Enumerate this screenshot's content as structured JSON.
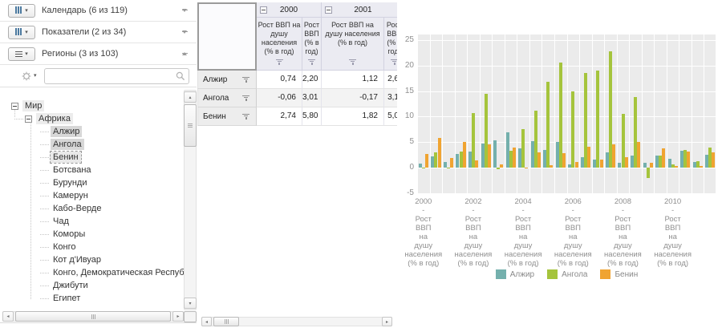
{
  "filters": {
    "sections": [
      {
        "id": "calendar",
        "label": "Календарь (6 из 119)",
        "collapsed": true
      },
      {
        "id": "indicators",
        "label": "Показатели (2 из 34)",
        "collapsed": true
      },
      {
        "id": "regions",
        "label": "Регионы (3 из 103)",
        "collapsed": false
      }
    ],
    "search": {
      "value": "",
      "placeholder": ""
    }
  },
  "tree": {
    "items": [
      {
        "label": "Мир",
        "level": 0,
        "expander": true,
        "state": "highlight"
      },
      {
        "label": "Африка",
        "level": 1,
        "expander": true,
        "state": "highlight"
      },
      {
        "label": "Алжир",
        "level": 2,
        "expander": false,
        "state": "selected"
      },
      {
        "label": "Ангола",
        "level": 2,
        "expander": false,
        "state": "selected"
      },
      {
        "label": "Бенин",
        "level": 2,
        "expander": false,
        "state": "focused"
      },
      {
        "label": "Ботсвана",
        "level": 2,
        "expander": false,
        "state": "none"
      },
      {
        "label": "Бурунди",
        "level": 2,
        "expander": false,
        "state": "none"
      },
      {
        "label": "Камерун",
        "level": 2,
        "expander": false,
        "state": "none"
      },
      {
        "label": "Кабо-Верде",
        "level": 2,
        "expander": false,
        "state": "none"
      },
      {
        "label": "Чад",
        "level": 2,
        "expander": false,
        "state": "none"
      },
      {
        "label": "Коморы",
        "level": 2,
        "expander": false,
        "state": "none"
      },
      {
        "label": "Конго",
        "level": 2,
        "expander": false,
        "state": "none"
      },
      {
        "label": "Кот д'Ивуар",
        "level": 2,
        "expander": false,
        "state": "none"
      },
      {
        "label": "Конго, Демократическая Республика",
        "level": 2,
        "expander": false,
        "state": "none"
      },
      {
        "label": "Джибути",
        "level": 2,
        "expander": false,
        "state": "none"
      },
      {
        "label": "Египет",
        "level": 2,
        "expander": false,
        "state": "none"
      }
    ]
  },
  "table": {
    "year_groups": [
      {
        "year": "2000"
      },
      {
        "year": "2001"
      }
    ],
    "measures": [
      "Рост ВВП на душу населения (% в год)",
      "Рост ВВП (% в год)"
    ],
    "rows": [
      {
        "region": "Алжир",
        "values": [
          "0,74",
          "2,20",
          "1,12",
          "2,6"
        ]
      },
      {
        "region": "Ангола",
        "values": [
          "-0,06",
          "3,01",
          "-0,17",
          "3,1"
        ]
      },
      {
        "region": "Бенин",
        "values": [
          "2,74",
          "5,80",
          "1,82",
          "5,0"
        ]
      }
    ]
  },
  "chart_data": {
    "type": "bar",
    "title": "",
    "ylim": [
      -5,
      25
    ],
    "yticks": [
      25,
      20,
      15,
      10,
      5,
      0,
      -5
    ],
    "grid": true,
    "plot_bg": "#ebebeb",
    "legend_position": "bottom",
    "categories": [
      "2000 - Рост ВВП на душу населения (% в год)",
      "2000 - Рост ВВП (% в год)",
      "2001 - Рост ВВП на душу населения (% в год)",
      "2001 - Рост ВВП (% в год)",
      "2002 - Рост ВВП на душу населения (% в год)",
      "2002 - Рост ВВП (% в год)",
      "2003 - Рост ВВП на душу населения (% в год)",
      "2003 - Рост ВВП (% в год)",
      "2004 - Рост ВВП на душу населения (% в год)",
      "2004 - Рост ВВП (% в год)",
      "2005 - Рост ВВП на душу населения (% в год)",
      "2005 - Рост ВВП (% в год)",
      "2006 - Рост ВВП на душу населения (% в год)",
      "2006 - Рост ВВП (% в год)",
      "2007 - Рост ВВП на душу населения (% в год)",
      "2007 - Рост ВВП (% в год)",
      "2008 - Рост ВВП на душу населения (% в год)",
      "2008 - Рост ВВП (% в год)",
      "2009 - Рост ВВП на душу населения (% в год)",
      "2009 - Рост ВВП (% в год)",
      "2010 - Рост ВВП на душу населения (% в год)",
      "2010 - Рост ВВП (% в год)",
      "2011 - Рост ВВП на душу населения (% в год)",
      "2011 - Рост ВВП (% в год)"
    ],
    "series": [
      {
        "name": "Алжир",
        "color": "#74b0ad",
        "values": [
          0.74,
          2.2,
          1.12,
          2.6,
          3.1,
          4.7,
          5.4,
          6.9,
          3.7,
          5.2,
          3.5,
          5.1,
          0.6,
          2.0,
          1.5,
          3.0,
          0.9,
          2.4,
          0.9,
          2.4,
          1.8,
          3.3,
          1.1,
          2.5
        ]
      },
      {
        "name": "Ангола",
        "color": "#a5c43c",
        "values": [
          -0.06,
          3.01,
          -0.17,
          3.1,
          10.7,
          14.5,
          -0.3,
          3.3,
          7.5,
          11.2,
          16.8,
          20.6,
          14.9,
          18.6,
          19.1,
          22.8,
          10.5,
          13.9,
          -2.1,
          2.4,
          0.6,
          3.4,
          1.2,
          3.9
        ]
      },
      {
        "name": "Бенин",
        "color": "#f0a431",
        "values": [
          2.74,
          5.8,
          1.82,
          5.0,
          1.4,
          4.5,
          0.7,
          3.9,
          -0.2,
          3.0,
          0.5,
          2.9,
          1.1,
          4.1,
          1.6,
          4.6,
          2.1,
          5.1,
          0.9,
          3.7,
          0.3,
          3.1,
          0.3,
          3.0
        ]
      }
    ],
    "x_tick_group_indices": [
      0,
      4,
      8,
      12,
      16,
      20
    ],
    "x_tick_years": [
      "2000",
      "2002",
      "2004",
      "2006",
      "2008",
      "2010"
    ],
    "x_tick_lines": [
      "-",
      "Рост",
      "ВВП",
      "на",
      "душу",
      "населения",
      "(% в год)"
    ]
  }
}
